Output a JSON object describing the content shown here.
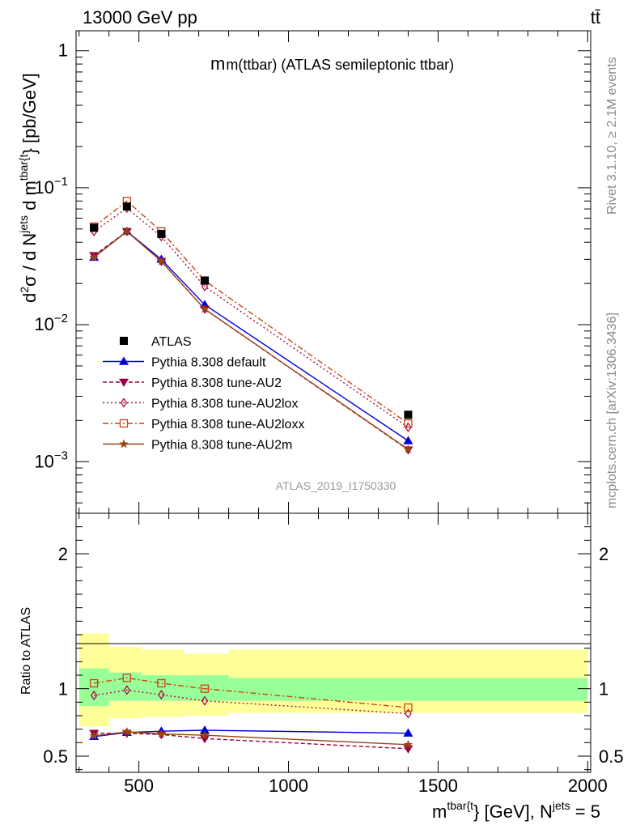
{
  "header": {
    "energy_label": "13000 GeV pp",
    "process_label": "tt̄"
  },
  "side_labels": {
    "rivet": "Rivet 3.1.10, ≥ 2.1M events",
    "mcplots": "mcplots.cern.ch [arXiv:1306.3436]"
  },
  "chart_data": {
    "type": "line",
    "title": "m(ttbar) (ATLAS semileptonic ttbar)",
    "analysis_id": "ATLAS_2019_I1750330",
    "xlabel": {
      "base": "m",
      "sup1": "tbar{t",
      "mid": "} [GeV], N",
      "sup2": "jets",
      "tail": " = 5"
    },
    "ylabel": {
      "d": "d",
      "two": "2",
      "sigma": "σ / d N",
      "jets": "jets",
      "dm": " d m",
      "sup": "tbar{t",
      "unit": "} [pb/GeV]"
    },
    "ratio_ylabel": "Ratio to ATLAS",
    "xlim": [
      290,
      2010
    ],
    "ylim_main": [
      0.00042,
      1.4
    ],
    "yscale_main": "log",
    "ylim_ratio": [
      0.38,
      2.3
    ],
    "x_ticks": [
      500,
      1000,
      1500,
      2000
    ],
    "x_tick_labels": [
      "500",
      "1000",
      "1500",
      "2000"
    ],
    "y_ticks_main": [
      {
        "value": 1,
        "label": "1"
      },
      {
        "value": 0.1,
        "label": "10",
        "exp": "−1"
      },
      {
        "value": 0.01,
        "label": "10",
        "exp": "−2"
      },
      {
        "value": 0.001,
        "label": "10",
        "exp": "−3"
      }
    ],
    "y_ticks_ratio": [
      {
        "value": 0.5,
        "label": "0.5"
      },
      {
        "value": 1,
        "label": "1"
      },
      {
        "value": 2,
        "label": "2"
      }
    ],
    "legend_position": "bottom-left",
    "data": {
      "name": "ATLAS",
      "color": "#000000",
      "x": [
        350,
        460,
        575,
        720,
        1400
      ],
      "y": [
        0.051,
        0.073,
        0.046,
        0.021,
        0.0022
      ]
    },
    "uncertainty_bands": {
      "bins": [
        {
          "x0": 300,
          "x1": 400,
          "inner": [
            0.87,
            1.15
          ],
          "outer": [
            0.72,
            1.41
          ]
        },
        {
          "x0": 400,
          "x1": 510,
          "inner": [
            0.91,
            1.12
          ],
          "outer": [
            0.78,
            1.31
          ]
        },
        {
          "x0": 510,
          "x1": 650,
          "inner": [
            0.91,
            1.1
          ],
          "outer": [
            0.79,
            1.29
          ]
        },
        {
          "x0": 650,
          "x1": 800,
          "inner": [
            0.91,
            1.1
          ],
          "outer": [
            0.8,
            1.26
          ]
        },
        {
          "x0": 800,
          "x1": 2000,
          "inner": [
            0.91,
            1.08
          ],
          "outer": [
            0.82,
            1.29
          ]
        }
      ],
      "inner_color": "#99ff99",
      "outer_color": "#ffff99"
    },
    "series": [
      {
        "name": "Pythia 8.308 default",
        "color": "#0000dd",
        "dash": "",
        "marker": "triangle-up",
        "x": [
          350,
          460,
          575,
          720,
          1400
        ],
        "y": [
          0.031,
          0.048,
          0.03,
          0.014,
          0.00142
        ],
        "ratio": [
          0.645,
          0.675,
          0.685,
          0.692,
          0.67
        ]
      },
      {
        "name": "Pythia 8.308 tune-AU2",
        "color": "#990044",
        "dash": "5,3",
        "marker": "triangle-down",
        "x": [
          350,
          460,
          575,
          720,
          1400
        ],
        "y": [
          0.032,
          0.048,
          0.029,
          0.013,
          0.00122
        ],
        "ratio": [
          0.67,
          0.67,
          0.66,
          0.63,
          0.555
        ]
      },
      {
        "name": "Pythia 8.308 tune-AU2lox",
        "color": "#aa1144",
        "dash": "2,3",
        "marker": "diamond-open",
        "x": [
          350,
          460,
          575,
          720,
          1400
        ],
        "y": [
          0.048,
          0.071,
          0.044,
          0.019,
          0.00178
        ],
        "ratio": [
          0.95,
          0.99,
          0.955,
          0.91,
          0.815
        ]
      },
      {
        "name": "Pythia 8.308 tune-AU2loxx",
        "color": "#cc4411",
        "dash": "7,3,2,3",
        "marker": "square-open",
        "x": [
          350,
          460,
          575,
          720,
          1400
        ],
        "y": [
          0.052,
          0.08,
          0.048,
          0.021,
          0.0019
        ],
        "ratio": [
          1.04,
          1.08,
          1.04,
          1.0,
          0.86
        ]
      },
      {
        "name": "Pythia 8.308 tune-AU2m",
        "color": "#994411",
        "dash": "",
        "marker": "star",
        "x": [
          350,
          460,
          575,
          720,
          1400
        ],
        "y": [
          0.031,
          0.048,
          0.029,
          0.013,
          0.00123
        ],
        "ratio": [
          0.65,
          0.68,
          0.665,
          0.655,
          0.585
        ]
      }
    ]
  }
}
